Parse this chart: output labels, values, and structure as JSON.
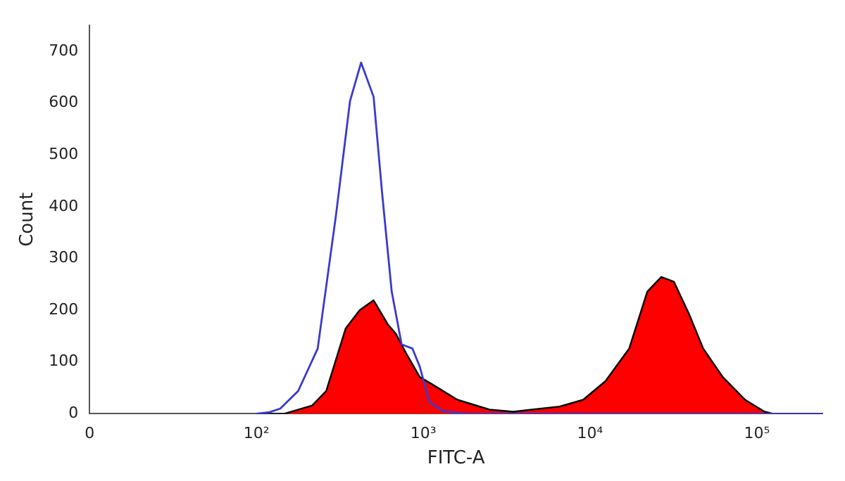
{
  "chart_data": {
    "type": "area",
    "xlabel": "FITC-A",
    "ylabel": "Count",
    "log": "x",
    "grid": false,
    "legend": false,
    "xlim": [
      0,
      247000
    ],
    "xticks": [
      0,
      {
        "value": 100,
        "label": "10²"
      },
      {
        "value": 1000,
        "label": "10³"
      },
      {
        "value": 10000,
        "label": "10⁴"
      },
      {
        "value": 100000,
        "label": "10⁵"
      }
    ],
    "ylim": [
      0,
      750
    ],
    "yticks": [
      0,
      100,
      200,
      300,
      400,
      500,
      600,
      700
    ],
    "series": [
      {
        "color": "#ff0000",
        "x": [
          100,
          147,
          216,
          262,
          343,
          416,
          504,
          612,
          687,
          786,
          953,
          1156,
          1603,
          2496,
          3467,
          6551,
          9085,
          12360,
          17150,
          22030,
          26720,
          31780,
          39260,
          47640,
          62370,
          84900,
          111200,
          124800,
          247000
        ],
        "values": [
          0,
          0,
          16,
          44,
          165,
          200,
          219,
          173,
          154,
          118,
          71,
          55,
          27,
          8,
          4,
          14,
          27,
          63,
          126,
          236,
          264,
          255,
          192,
          126,
          71,
          27,
          4,
          0,
          0
        ]
      },
      {
        "type": "line",
        "color": "#3a3acc",
        "x": [
          100,
          120,
          139,
          178,
          233,
          300,
          364,
          424,
          504,
          566,
          647,
          742,
          861,
          953,
          1088,
          1318,
          1797,
          247000
        ],
        "values": [
          0,
          3,
          10,
          44,
          126,
          384,
          604,
          678,
          612,
          428,
          236,
          134,
          126,
          91,
          23,
          5,
          0,
          0
        ]
      }
    ]
  }
}
